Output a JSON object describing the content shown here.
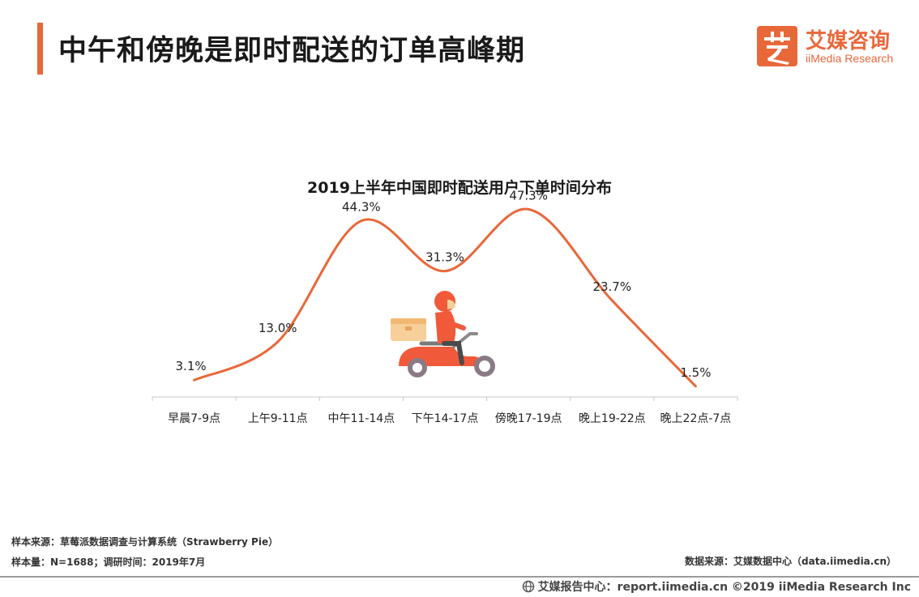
{
  "header": {
    "title": "中午和傍晚是即时配送的订单高峰期",
    "accent_color": "#e8683a"
  },
  "logo": {
    "cn": "艾媒咨询",
    "en": "iiMedia Research",
    "icon": "ai-logo-icon"
  },
  "chart_data": {
    "type": "line",
    "title": "2019上半年中国即时配送用户下单时间分布",
    "categories": [
      "早晨7-9点",
      "上午9-11点",
      "中午11-14点",
      "下午14-17点",
      "傍晚17-19点",
      "晚上19-22点",
      "晚上22点-7点"
    ],
    "values": [
      3.1,
      13.0,
      44.3,
      31.3,
      47.3,
      23.7,
      1.5
    ],
    "value_labels": [
      "3.1%",
      "13.0%",
      "44.3%",
      "31.3%",
      "47.3%",
      "23.7%",
      "1.5%"
    ],
    "unit": "%",
    "line_color": "#e8683a",
    "smooth": true,
    "grid": false,
    "decoration": "scooter-rider-icon"
  },
  "footer": {
    "source": "样本来源：草莓派数据调查与计算系统（Strawberry Pie）",
    "sample": "样本量：N=1688；调研时间：2019年7月",
    "data_source": "数据来源：艾媒数据中心（data.iimedia.cn）",
    "copyright": "艾媒报告中心：report.iimedia.cn   ©2019  iiMedia Research  Inc",
    "globe_icon": "globe-icon"
  }
}
